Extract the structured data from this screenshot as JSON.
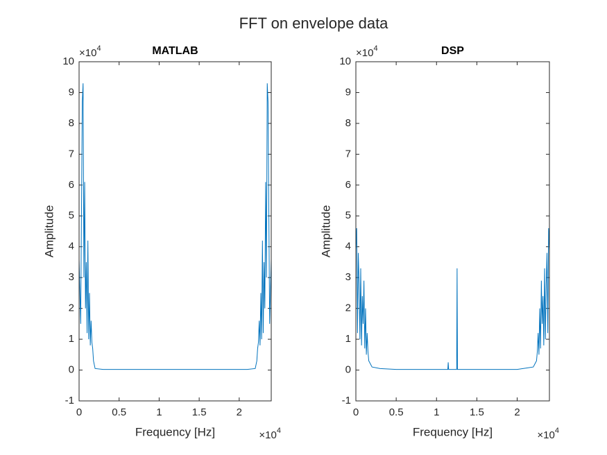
{
  "title": "FFT on envelope data",
  "chart_data": [
    {
      "type": "line",
      "title": "MATLAB",
      "xlabel": "Frequency [Hz]",
      "ylabel": "Amplitude",
      "x_multiplier": "×10",
      "x_exponent": "4",
      "y_multiplier": "×10",
      "y_exponent": "4",
      "xlim": [
        0,
        2.4
      ],
      "xticks": [
        0,
        0.5,
        1,
        1.5,
        2
      ],
      "ylim": [
        -1,
        10
      ],
      "yticks": [
        -1,
        0,
        1,
        2,
        3,
        4,
        5,
        6,
        7,
        8,
        9,
        10
      ],
      "grid": false,
      "series": [
        {
          "color": "#0072bd",
          "x": [
            0,
            0.02,
            0.04,
            0.05,
            0.06,
            0.07,
            0.08,
            0.09,
            0.1,
            0.11,
            0.12,
            0.13,
            0.14,
            0.15,
            0.16,
            0.17,
            0.18,
            0.2,
            0.3,
            0.5,
            1.0,
            1.5,
            2.0,
            2.1,
            2.2,
            2.22,
            2.23,
            2.24,
            2.25,
            2.26,
            2.27,
            2.28,
            2.29,
            2.3,
            2.31,
            2.32,
            2.33,
            2.34,
            2.35,
            2.36,
            2.38,
            2.4
          ],
          "values": [
            3.6,
            1.5,
            8.7,
            9.3,
            3.0,
            6.1,
            2.0,
            3.5,
            1.2,
            4.2,
            1.0,
            2.5,
            0.8,
            1.6,
            0.9,
            0.7,
            0.3,
            0.05,
            0.02,
            0.02,
            0.02,
            0.02,
            0.02,
            0.02,
            0.05,
            0.3,
            0.7,
            0.9,
            1.6,
            0.8,
            2.5,
            1.0,
            4.2,
            1.2,
            3.5,
            2.0,
            6.1,
            3.0,
            9.3,
            8.7,
            1.5,
            3.6
          ]
        }
      ]
    },
    {
      "type": "line",
      "title": "DSP",
      "xlabel": "Frequency [Hz]",
      "ylabel": "Amplitude",
      "x_multiplier": "×10",
      "x_exponent": "4",
      "y_multiplier": "×10",
      "y_exponent": "4",
      "xlim": [
        0,
        2.4
      ],
      "xticks": [
        0,
        0.5,
        1,
        1.5,
        2
      ],
      "ylim": [
        -1,
        10
      ],
      "yticks": [
        -1,
        0,
        1,
        2,
        3,
        4,
        5,
        6,
        7,
        8,
        9,
        10
      ],
      "grid": false,
      "series": [
        {
          "color": "#0072bd",
          "x": [
            0,
            0.01,
            0.02,
            0.03,
            0.04,
            0.05,
            0.06,
            0.07,
            0.08,
            0.09,
            0.1,
            0.11,
            0.12,
            0.13,
            0.14,
            0.15,
            0.16,
            0.18,
            0.2,
            0.3,
            0.5,
            1.0,
            1.14,
            1.145,
            1.15,
            1.25,
            1.255,
            1.26,
            1.5,
            2.0,
            2.2,
            2.22,
            2.24,
            2.25,
            2.26,
            2.27,
            2.28,
            2.29,
            2.3,
            2.31,
            2.32,
            2.33,
            2.34,
            2.35,
            2.36,
            2.37,
            2.38,
            2.39,
            2.4
          ],
          "values": [
            3.9,
            4.6,
            1.2,
            3.8,
            2.8,
            1.0,
            3.3,
            0.8,
            2.4,
            1.5,
            2.9,
            0.7,
            2.0,
            0.5,
            1.2,
            0.6,
            0.3,
            0.2,
            0.1,
            0.05,
            0.02,
            0.02,
            0.02,
            0.25,
            0.02,
            0.02,
            3.3,
            0.02,
            0.02,
            0.02,
            0.1,
            0.2,
            0.3,
            0.6,
            1.2,
            0.5,
            2.0,
            0.7,
            2.9,
            1.5,
            2.4,
            0.8,
            3.3,
            1.0,
            2.8,
            3.8,
            1.2,
            4.6,
            3.9
          ]
        }
      ]
    }
  ]
}
